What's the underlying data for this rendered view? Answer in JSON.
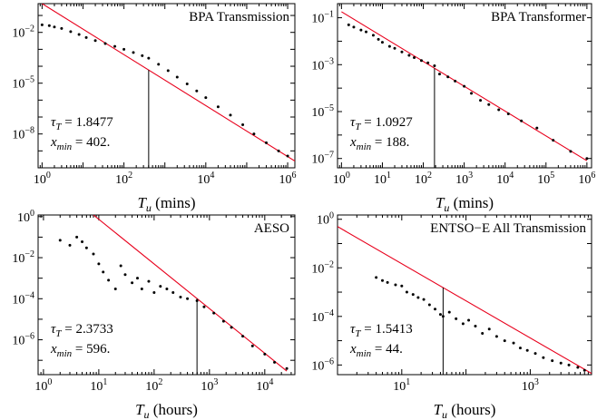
{
  "chart_data": [
    {
      "type": "scatter",
      "title": "BPA Transmission",
      "xlabel": "T_u (mins)",
      "xscale": "log",
      "yscale": "log",
      "xlim": [
        0.8,
        1500000
      ],
      "ylim": [
        1e-10,
        0.5
      ],
      "xticks": [
        "10^0",
        "10^2",
        "10^4",
        "10^6"
      ],
      "yticks": [
        "10^-2",
        "10^-5",
        "10^-8"
      ],
      "annotation": {
        "tau_label": "τ",
        "tau_sub": "T",
        "tau_value": "= 1.8477",
        "xmin_label": "x",
        "xmin_sub": "min",
        "xmin_value": "= 402."
      },
      "tau": 1.8477,
      "xmin": 402,
      "fit_line": {
        "x": [
          1,
          1500000
        ],
        "y": [
          0.5,
          2.5e-10
        ]
      },
      "series": [
        {
          "x": [
            1,
            1.5,
            2,
            3,
            5,
            8,
            12,
            20,
            35,
            60,
            100,
            170,
            280,
            402,
            700,
            1200,
            2000,
            3500,
            6000,
            10000,
            20000,
            40000,
            80000,
            150000,
            300000,
            600000,
            1000000
          ],
          "y": [
            0.028,
            0.025,
            0.021,
            0.017,
            0.011,
            0.0075,
            0.005,
            0.0033,
            0.0022,
            0.0015,
            0.001,
            0.00065,
            0.00042,
            0.0003,
            0.00013,
            5.5e-05,
            2.3e-05,
            9e-06,
            3.5e-06,
            1.4e-06,
            4e-07,
            1.3e-07,
            3.5e-08,
            1e-08,
            3e-09,
            1e-09,
            5e-10
          ]
        }
      ]
    },
    {
      "type": "scatter",
      "title": "BPA Transformer",
      "xlabel": "T_u (mins)",
      "xscale": "log",
      "yscale": "log",
      "xlim": [
        0.8,
        1300000
      ],
      "ylim": [
        4e-08,
        0.4
      ],
      "xticks": [
        "10^0",
        "10^1",
        "10^2",
        "10^3",
        "10^4",
        "10^5",
        "10^6"
      ],
      "yticks": [
        "10^-1",
        "10^-3",
        "10^-5",
        "10^-7"
      ],
      "annotation": {
        "tau_label": "τ",
        "tau_sub": "T",
        "tau_value": "= 1.0927",
        "xmin_label": "x",
        "xmin_sub": "min",
        "xmin_value": "= 188."
      },
      "tau": 1.0927,
      "xmin": 188,
      "fit_line": {
        "x": [
          1,
          1000000
        ],
        "y": [
          0.18,
          8e-08
        ]
      },
      "series": [
        {
          "x": [
            1.5,
            2,
            3,
            4,
            6,
            8,
            10,
            15,
            20,
            30,
            45,
            60,
            90,
            130,
            188,
            250,
            400,
            600,
            1000,
            1500,
            2500,
            4000,
            7000,
            12000,
            25000,
            60000,
            150000,
            400000,
            1000000
          ],
          "y": [
            0.05,
            0.04,
            0.03,
            0.025,
            0.018,
            0.012,
            0.009,
            0.006,
            0.005,
            0.0035,
            0.0025,
            0.002,
            0.0015,
            0.0012,
            0.0009,
            0.0004,
            0.0003,
            0.0002,
            0.00012,
            6e-05,
            3e-05,
            2e-05,
            1.2e-05,
            8e-06,
            4e-06,
            2e-06,
            6e-07,
            2e-07,
            1e-07
          ]
        }
      ]
    },
    {
      "type": "scatter",
      "title": "AESO",
      "xlabel": "T_u (hours)",
      "xscale": "log",
      "yscale": "log",
      "xlim": [
        0.8,
        35000
      ],
      "ylim": [
        2e-08,
        1.2
      ],
      "xticks": [
        "10^0",
        "10^1",
        "10^2",
        "10^3",
        "10^4"
      ],
      "yticks": [
        "10^0",
        "10^-2",
        "10^-4",
        "10^-6"
      ],
      "annotation": {
        "tau_label": "τ",
        "tau_sub": "T",
        "tau_value": "= 2.3733",
        "xmin_label": "x",
        "xmin_sub": "min",
        "xmin_value": "= 596."
      },
      "tau": 2.3733,
      "xmin": 596,
      "fit_line": {
        "x": [
          8,
          25000
        ],
        "y": [
          1.2,
          3e-08
        ]
      },
      "series": [
        {
          "x": [
            2,
            3,
            4,
            5,
            6,
            8,
            10,
            12,
            15,
            20,
            25,
            30,
            40,
            50,
            60,
            80,
            100,
            130,
            170,
            220,
            300,
            400,
            596,
            800,
            1200,
            1800,
            2500,
            4000,
            6000,
            10000,
            15000,
            25000
          ],
          "y": [
            0.07,
            0.04,
            0.1,
            0.06,
            0.03,
            0.015,
            0.005,
            0.002,
            0.0008,
            0.0003,
            0.004,
            0.0015,
            0.0006,
            0.001,
            0.0003,
            0.0007,
            0.0002,
            0.0004,
            0.0003,
            0.0002,
            0.00012,
            0.0001,
            8e-05,
            4e-05,
            2e-05,
            8e-06,
            4e-06,
            1.5e-06,
            5e-07,
            2e-07,
            8e-08,
            4e-08
          ]
        }
      ]
    },
    {
      "type": "scatter",
      "title": "ENTSO−E All Transmission",
      "xlabel": "T_u (hours)",
      "xscale": "log",
      "yscale": "log",
      "xlim": [
        1,
        9000
      ],
      "ylim": [
        4e-07,
        1.5
      ],
      "xticks": [
        "10^1",
        "10^3"
      ],
      "yticks": [
        "10^0",
        "10^-2",
        "10^-4",
        "10^-6"
      ],
      "annotation": {
        "tau_label": "τ",
        "tau_sub": "T",
        "tau_value": "= 1.5413",
        "xmin_label": "x",
        "xmin_sub": "min",
        "xmin_value": "= 44."
      },
      "tau": 1.5413,
      "xmin": 44,
      "fit_line": {
        "x": [
          1,
          9000
        ],
        "y": [
          0.5,
          4.5e-07
        ]
      },
      "series": [
        {
          "x": [
            4,
            5,
            6,
            8,
            10,
            12,
            15,
            18,
            22,
            27,
            33,
            40,
            44,
            55,
            70,
            90,
            110,
            140,
            180,
            230,
            300,
            400,
            550,
            700,
            900,
            1200,
            1600,
            2200,
            3000,
            4000,
            5500,
            7000
          ],
          "y": [
            0.004,
            0.003,
            0.0025,
            0.002,
            0.0018,
            0.001,
            0.0008,
            0.0006,
            0.0005,
            0.0003,
            0.0002,
            0.00012,
            0.0001,
            0.00015,
            8e-05,
            5e-05,
            7e-05,
            4e-05,
            2e-05,
            3e-05,
            1.5e-05,
            1e-05,
            8e-06,
            5e-06,
            4e-06,
            3e-06,
            2e-06,
            1.5e-06,
            1.2e-06,
            1e-06,
            8e-07,
            6e-07
          ]
        }
      ]
    }
  ]
}
